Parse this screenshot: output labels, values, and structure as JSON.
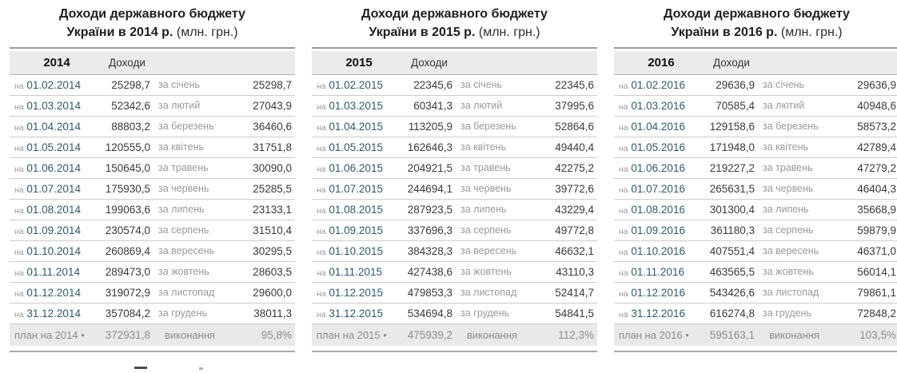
{
  "date_prefix": "на",
  "colors": {
    "date_link": "#2f5a6e",
    "muted_gray": "#9a9a9a",
    "header_bg": "#ebebeb",
    "footer_bg": "#e9e9e9",
    "heavy_border": "#9b9b9b",
    "row_border": "#cccccc"
  },
  "chart_data": [
    {
      "type": "table",
      "title": "Доходи державного бюджету України в 2014 р. (млн. грн.)",
      "title_line1": "Доходи державного бюджету",
      "title_line2": "України в 2014 р.",
      "unit": "(млн. грн.)",
      "year_header": "2014",
      "income_header": "Доходи",
      "rows": [
        {
          "date": "01.02.2014",
          "cumulative": "25298,7",
          "month": "за січень",
          "monthly": "25298,7"
        },
        {
          "date": "01.03.2014",
          "cumulative": "52342,6",
          "month": "за лютий",
          "monthly": "27043,9"
        },
        {
          "date": "01.04.2014",
          "cumulative": "88803,2",
          "month": "за березень",
          "monthly": "36460,6"
        },
        {
          "date": "01.05.2014",
          "cumulative": "120555,0",
          "month": "за квітень",
          "monthly": "31751,8"
        },
        {
          "date": "01.06.2014",
          "cumulative": "150645,0",
          "month": "за травень",
          "monthly": "30090,0"
        },
        {
          "date": "01.07.2014",
          "cumulative": "175930,5",
          "month": "за червень",
          "monthly": "25285,5"
        },
        {
          "date": "01.08.2014",
          "cumulative": "199063,6",
          "month": "за липень",
          "monthly": "23133,1"
        },
        {
          "date": "01.09.2014",
          "cumulative": "230574,0",
          "month": "за серпень",
          "monthly": "31510,4"
        },
        {
          "date": "01.10.2014",
          "cumulative": "260869,4",
          "month": "за вересень",
          "monthly": "30295,5"
        },
        {
          "date": "01.11.2014",
          "cumulative": "289473,0",
          "month": "за жовтень",
          "monthly": "28603,5"
        },
        {
          "date": "01.12.2014",
          "cumulative": "319072,9",
          "month": "за листопад",
          "monthly": "29600,0"
        },
        {
          "date": "31.12.2014",
          "cumulative": "357084,2",
          "month": "за грудень",
          "monthly": "38011,3"
        }
      ],
      "footer": {
        "plan_label": "план на 2014 •",
        "plan_value": "372931,8",
        "exec_label": "виконання",
        "exec_value": "95,8%"
      }
    },
    {
      "type": "table",
      "title": "Доходи державного бюджету України в 2015 р. (млн. грн.)",
      "title_line1": "Доходи державного бюджету",
      "title_line2": "України в 2015 р.",
      "unit": "(млн. грн.)",
      "year_header": "2015",
      "income_header": "Доходи",
      "rows": [
        {
          "date": "01.02.2015",
          "cumulative": "22345,6",
          "month": "за січень",
          "monthly": "22345,6"
        },
        {
          "date": "01.03.2015",
          "cumulative": "60341,3",
          "month": "за лютий",
          "monthly": "37995,6"
        },
        {
          "date": "01.04.2015",
          "cumulative": "113205,9",
          "month": "за березень",
          "monthly": "52864,6"
        },
        {
          "date": "01.05.2015",
          "cumulative": "162646,3",
          "month": "за квітень",
          "monthly": "49440,4"
        },
        {
          "date": "01.06.2015",
          "cumulative": "204921,5",
          "month": "за травень",
          "monthly": "42275,2"
        },
        {
          "date": "01.07.2015",
          "cumulative": "244694,1",
          "month": "за червень",
          "monthly": "39772,6"
        },
        {
          "date": "01.08.2015",
          "cumulative": "287923,5",
          "month": "за липень",
          "monthly": "43229,4"
        },
        {
          "date": "01.09.2015",
          "cumulative": "337696,3",
          "month": "за серпень",
          "monthly": "49772,8"
        },
        {
          "date": "01.10.2015",
          "cumulative": "384328,3",
          "month": "за вересень",
          "monthly": "46632,1"
        },
        {
          "date": "01.11.2015",
          "cumulative": "427438,6",
          "month": "за жовтень",
          "monthly": "43110,3"
        },
        {
          "date": "01.12.2015",
          "cumulative": "479853,3",
          "month": "за листопад",
          "monthly": "52414,7"
        },
        {
          "date": "31.12.2015",
          "cumulative": "534694,8",
          "month": "за грудень",
          "monthly": "54841,5"
        }
      ],
      "footer": {
        "plan_label": "план на 2015 •",
        "plan_value": "475939,2",
        "exec_label": "виконання",
        "exec_value": "112,3%"
      }
    },
    {
      "type": "table",
      "title": "Доходи державного бюджету України в 2016 р. (млн. грн.)",
      "title_line1": "Доходи державного бюджету",
      "title_line2": "України в 2016 р.",
      "unit": "(млн. грн.)",
      "year_header": "2016",
      "income_header": "Доходи",
      "rows": [
        {
          "date": "01.02.2016",
          "cumulative": "29636,9",
          "month": "за січень",
          "monthly": "29636,9"
        },
        {
          "date": "01.03.2016",
          "cumulative": "70585,4",
          "month": "за лютий",
          "monthly": "40948,6"
        },
        {
          "date": "01.04.2016",
          "cumulative": "129158,6",
          "month": "за березень",
          "monthly": "58573,2"
        },
        {
          "date": "01.05.2016",
          "cumulative": "171948,0",
          "month": "за квітень",
          "monthly": "42789,4"
        },
        {
          "date": "01.06.2016",
          "cumulative": "219227,2",
          "month": "за травень",
          "monthly": "47279,2"
        },
        {
          "date": "01.07.2016",
          "cumulative": "265631,5",
          "month": "за червень",
          "monthly": "46404,3"
        },
        {
          "date": "01.08.2016",
          "cumulative": "301300,4",
          "month": "за липень",
          "monthly": "35668,9"
        },
        {
          "date": "01.09.2016",
          "cumulative": "361180,3",
          "month": "за серпень",
          "monthly": "59879,9"
        },
        {
          "date": "01.10.2016",
          "cumulative": "407551,4",
          "month": "за вересень",
          "monthly": "46371,0"
        },
        {
          "date": "01.11.2016",
          "cumulative": "463565,5",
          "month": "за жовтень",
          "monthly": "56014,1"
        },
        {
          "date": "01.12.2016",
          "cumulative": "543426,6",
          "month": "за листопад",
          "monthly": "79861,1"
        },
        {
          "date": "31.12.2016",
          "cumulative": "616274,8",
          "month": "за грудень",
          "monthly": "72848,2"
        }
      ],
      "footer": {
        "plan_label": "план на 2016 •",
        "plan_value": "595163,1",
        "exec_label": "виконання",
        "exec_value": "103,5%"
      }
    }
  ]
}
